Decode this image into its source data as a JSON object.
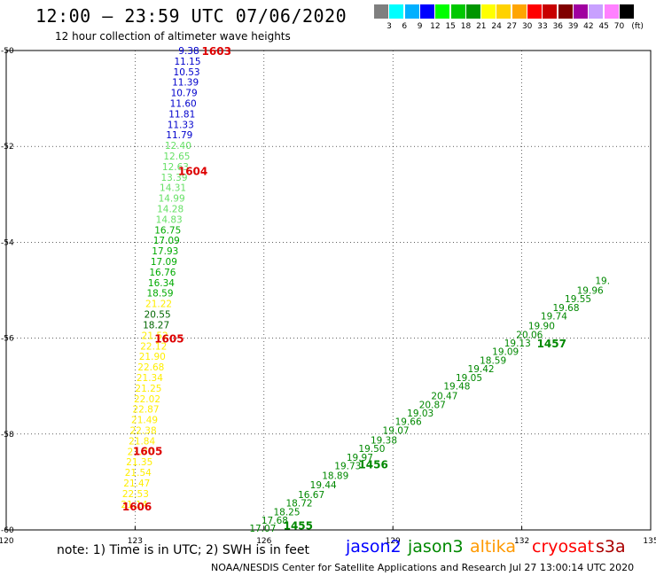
{
  "header": {
    "title": "12:00 — 23:59 UTC 07/06/2020",
    "subtitle": "12 hour collection of altimeter wave heights"
  },
  "color_scale": {
    "unit": "(ft)",
    "bins": [
      {
        "label": "3",
        "color": "#7f7f7f"
      },
      {
        "label": "6",
        "color": "#00ffff"
      },
      {
        "label": "9",
        "color": "#00b0ff"
      },
      {
        "label": "12",
        "color": "#0000ff"
      },
      {
        "label": "15",
        "color": "#00ff00"
      },
      {
        "label": "18",
        "color": "#00c800"
      },
      {
        "label": "21",
        "color": "#009600"
      },
      {
        "label": "24",
        "color": "#ffff00"
      },
      {
        "label": "27",
        "color": "#ffd200"
      },
      {
        "label": "30",
        "color": "#ffa500"
      },
      {
        "label": "33",
        "color": "#ff0000"
      },
      {
        "label": "36",
        "color": "#c80000"
      },
      {
        "label": "39",
        "color": "#800000"
      },
      {
        "label": "42",
        "color": "#a000a0"
      },
      {
        "label": "45",
        "color": "#c8a0ff"
      },
      {
        "label": "70",
        "color": "#ff80ff"
      },
      {
        "label": "",
        "color": "#000000"
      }
    ]
  },
  "footer": {
    "note": "note:  1) Time is in UTC;  2) SWH is in feet",
    "satellites": [
      {
        "name": "jason2",
        "color": "#0000ff"
      },
      {
        "name": "jason3",
        "color": "#008800"
      },
      {
        "name": "altika",
        "color": "#ff9900"
      },
      {
        "name": "cryosat",
        "color": "#ff0000"
      },
      {
        "name": "s3a",
        "color": "#aa0000"
      }
    ],
    "credit": "NOAA/NESDIS Center for Satellite Applications and Research     Jul 27 13:00:14 UTC 2020"
  },
  "chart_data": {
    "type": "scatter",
    "xlim": [
      120,
      135
    ],
    "ylim": [
      -60,
      -50
    ],
    "x_ticks": [
      "120",
      "123",
      "126",
      "129",
      "132",
      "135"
    ],
    "y_ticks": [
      "-50",
      "-52",
      "-54",
      "-56",
      "-58",
      "-60"
    ],
    "grid": true,
    "series": [
      {
        "color": "#0000cc",
        "points": [
          {
            "x": 124.25,
            "y": -50.0,
            "label": "9.38"
          },
          {
            "x": 124.22,
            "y": -50.22,
            "label": "11.15"
          },
          {
            "x": 124.2,
            "y": -50.44,
            "label": "10.53"
          },
          {
            "x": 124.17,
            "y": -50.66,
            "label": "11.39"
          },
          {
            "x": 124.14,
            "y": -50.88,
            "label": "10.79"
          },
          {
            "x": 124.12,
            "y": -51.1,
            "label": "11.60"
          },
          {
            "x": 124.09,
            "y": -51.32,
            "label": "11.81"
          },
          {
            "x": 124.06,
            "y": -51.54,
            "label": "11.33"
          },
          {
            "x": 124.03,
            "y": -51.76,
            "label": "11.79"
          }
        ]
      },
      {
        "color": "#66e066",
        "points": [
          {
            "x": 124.0,
            "y": -51.98,
            "label": "12.40"
          },
          {
            "x": 123.97,
            "y": -52.2,
            "label": "12.65"
          },
          {
            "x": 123.94,
            "y": -52.42,
            "label": "12.63"
          },
          {
            "x": 123.91,
            "y": -52.64,
            "label": "13.39"
          },
          {
            "x": 123.88,
            "y": -52.86,
            "label": "14.31"
          },
          {
            "x": 123.85,
            "y": -53.08,
            "label": "14.99"
          },
          {
            "x": 123.82,
            "y": -53.3,
            "label": "14.28"
          },
          {
            "x": 123.79,
            "y": -53.52,
            "label": "14.83"
          }
        ]
      },
      {
        "color": "#00aa00",
        "points": [
          {
            "x": 123.76,
            "y": -53.74,
            "label": "16.75"
          },
          {
            "x": 123.73,
            "y": -53.96,
            "label": "17.09"
          },
          {
            "x": 123.7,
            "y": -54.18,
            "label": "17.93"
          },
          {
            "x": 123.67,
            "y": -54.4,
            "label": "17.09"
          },
          {
            "x": 123.64,
            "y": -54.62,
            "label": "16.76"
          },
          {
            "x": 123.61,
            "y": -54.84,
            "label": "16.34"
          },
          {
            "x": 123.58,
            "y": -55.06,
            "label": "18.59"
          }
        ]
      },
      {
        "color": "#ffee00",
        "points": [
          {
            "x": 123.55,
            "y": -55.28,
            "label": "21.22"
          }
        ]
      },
      {
        "color": "#006600",
        "points": [
          {
            "x": 123.52,
            "y": -55.5,
            "label": "20.55"
          },
          {
            "x": 123.49,
            "y": -55.72,
            "label": "18.27"
          }
        ]
      },
      {
        "color": "#ffee00",
        "points": [
          {
            "x": 123.46,
            "y": -55.94,
            "label": "21.52"
          },
          {
            "x": 123.43,
            "y": -56.16,
            "label": "22.12"
          },
          {
            "x": 123.4,
            "y": -56.38,
            "label": "21.90"
          },
          {
            "x": 123.37,
            "y": -56.6,
            "label": "22.68"
          },
          {
            "x": 123.34,
            "y": -56.82,
            "label": "21.34"
          },
          {
            "x": 123.31,
            "y": -57.04,
            "label": "21.25"
          },
          {
            "x": 123.28,
            "y": -57.26,
            "label": "22.02"
          },
          {
            "x": 123.25,
            "y": -57.48,
            "label": "22.87"
          },
          {
            "x": 123.22,
            "y": -57.7,
            "label": "21.49"
          },
          {
            "x": 123.19,
            "y": -57.92,
            "label": "22.38"
          },
          {
            "x": 123.16,
            "y": -58.14,
            "label": "21.84"
          },
          {
            "x": 123.13,
            "y": -58.36,
            "label": "21.70"
          },
          {
            "x": 123.1,
            "y": -58.58,
            "label": "21.35"
          },
          {
            "x": 123.07,
            "y": -58.8,
            "label": "21.54"
          },
          {
            "x": 123.04,
            "y": -59.02,
            "label": "21.47"
          },
          {
            "x": 123.01,
            "y": -59.24,
            "label": "22.53"
          },
          {
            "x": 122.98,
            "y": -59.46,
            "label": "21.14"
          }
        ]
      },
      {
        "color": "#008800",
        "points": [
          {
            "x": 125.97,
            "y": -59.96,
            "label": "17.07"
          },
          {
            "x": 126.25,
            "y": -59.8,
            "label": "17.68"
          },
          {
            "x": 126.53,
            "y": -59.62,
            "label": "18.25"
          },
          {
            "x": 126.82,
            "y": -59.44,
            "label": "18.72"
          },
          {
            "x": 127.1,
            "y": -59.26,
            "label": "16.67"
          },
          {
            "x": 127.38,
            "y": -59.06,
            "label": "19.44"
          },
          {
            "x": 127.66,
            "y": -58.86,
            "label": "18.89"
          },
          {
            "x": 127.95,
            "y": -58.66,
            "label": "19.73"
          },
          {
            "x": 128.23,
            "y": -58.48,
            "label": "19.97"
          },
          {
            "x": 128.51,
            "y": -58.3,
            "label": "19.50"
          },
          {
            "x": 128.79,
            "y": -58.12,
            "label": "19.38"
          },
          {
            "x": 129.07,
            "y": -57.92,
            "label": "19.07"
          },
          {
            "x": 129.36,
            "y": -57.74,
            "label": "19.66"
          },
          {
            "x": 129.64,
            "y": -57.56,
            "label": "19.03"
          },
          {
            "x": 129.92,
            "y": -57.38,
            "label": "20.87"
          },
          {
            "x": 130.2,
            "y": -57.2,
            "label": "20.47"
          },
          {
            "x": 130.49,
            "y": -57.0,
            "label": "19.48"
          },
          {
            "x": 130.77,
            "y": -56.82,
            "label": "19.05"
          },
          {
            "x": 131.05,
            "y": -56.64,
            "label": "19.42"
          },
          {
            "x": 131.33,
            "y": -56.46,
            "label": "18.59"
          },
          {
            "x": 131.62,
            "y": -56.28,
            "label": "19.09"
          },
          {
            "x": 131.9,
            "y": -56.1,
            "label": "19.13"
          },
          {
            "x": 132.18,
            "y": -55.92,
            "label": "20.06"
          },
          {
            "x": 132.46,
            "y": -55.74,
            "label": "19.90"
          },
          {
            "x": 132.75,
            "y": -55.54,
            "label": "19.74"
          },
          {
            "x": 133.03,
            "y": -55.36,
            "label": "19.68"
          },
          {
            "x": 133.31,
            "y": -55.18,
            "label": "19.55"
          },
          {
            "x": 133.59,
            "y": -55.0,
            "label": "19.96"
          },
          {
            "x": 133.88,
            "y": -54.8,
            "label": "19."
          }
        ]
      }
    ],
    "time_labels": [
      {
        "x": 124.55,
        "y": -50.0,
        "label": "1603",
        "color": "#dd0000"
      },
      {
        "x": 124.0,
        "y": -52.5,
        "label": "1604",
        "color": "#dd0000"
      },
      {
        "x": 123.45,
        "y": -56.0,
        "label": "1605",
        "color": "#dd0000"
      },
      {
        "x": 122.95,
        "y": -58.35,
        "label": "1605",
        "color": "#dd0000"
      },
      {
        "x": 122.7,
        "y": -59.5,
        "label": "1606",
        "color": "#dd0000"
      },
      {
        "x": 126.45,
        "y": -59.9,
        "label": "1455",
        "color": "#008800"
      },
      {
        "x": 128.2,
        "y": -58.62,
        "label": "1456",
        "color": "#008800"
      },
      {
        "x": 132.35,
        "y": -56.1,
        "label": "1457",
        "color": "#008800"
      }
    ]
  }
}
